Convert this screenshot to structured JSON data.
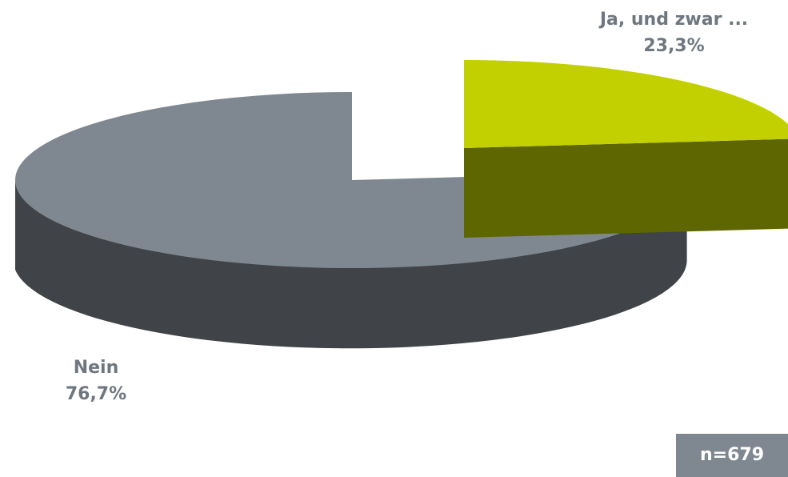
{
  "chart_data": {
    "type": "pie",
    "style": "3d-exploded",
    "slices": [
      {
        "label": "Ja, und zwar ...",
        "value": 23.3,
        "display": "23,3%",
        "color": "#c2cf00",
        "side_color": "#5d6600"
      },
      {
        "label": "Nein",
        "value": 76.7,
        "display": "76,7%",
        "color": "#7f8890",
        "side_color": "#404449"
      }
    ],
    "annotation": "n=679"
  }
}
